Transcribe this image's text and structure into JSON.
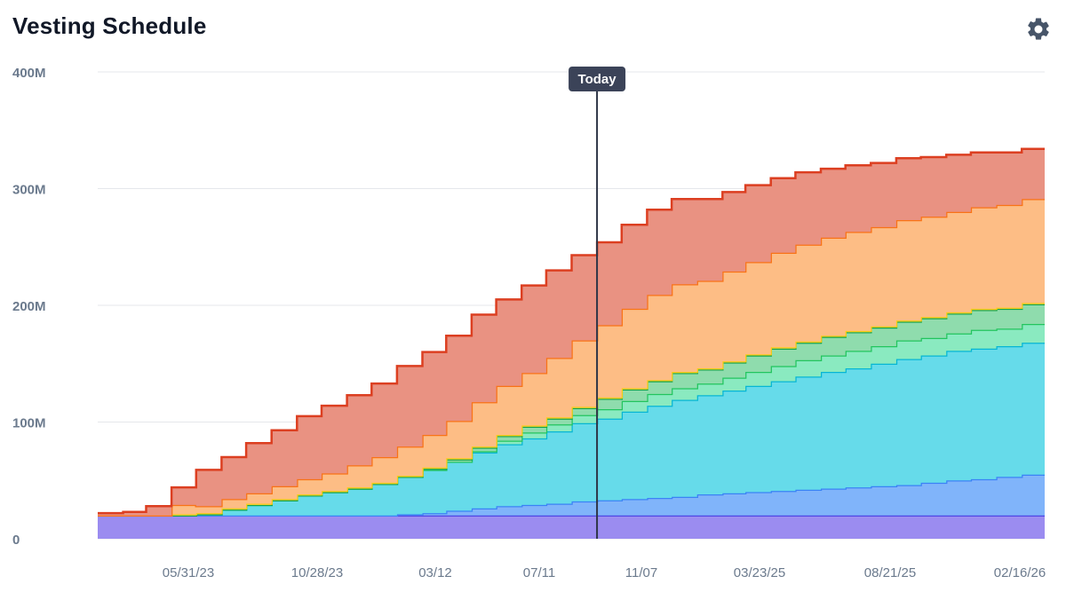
{
  "header": {
    "title": "Vesting Schedule",
    "settings_icon": "gear-icon"
  },
  "chart_data": {
    "type": "area",
    "stacked": true,
    "step": true,
    "title": "Vesting Schedule",
    "y_ticks": [
      "0",
      "100M",
      "200M",
      "300M",
      "400M"
    ],
    "ylim": [
      0,
      400
    ],
    "y_unit": "M",
    "x_tick_labels": [
      "05/31/23",
      "10/28/23",
      "03/12",
      "07/11",
      "11/07",
      "03/23/25",
      "08/21/25",
      "02/16/26"
    ],
    "today_label": "Today",
    "grid": "horizontal",
    "x": [
      "2023-01-01",
      "2023-02-01",
      "2023-03-01",
      "2023-04-01",
      "2023-05-01",
      "2023-06-01",
      "2023-07-01",
      "2023-08-01",
      "2023-09-01",
      "2023-10-01",
      "2023-11-01",
      "2023-12-01",
      "2024-01-01",
      "2024-02-01",
      "2024-03-01",
      "2024-04-01",
      "2024-05-01",
      "2024-06-01",
      "2024-07-01",
      "2024-08-01",
      "2024-09-01",
      "2024-10-01",
      "2024-11-01",
      "2024-12-01",
      "2025-01-01",
      "2025-02-01",
      "2025-03-01",
      "2025-04-01",
      "2025-05-01",
      "2025-06-01",
      "2025-07-01",
      "2025-08-01",
      "2025-09-01",
      "2025-10-01",
      "2025-11-01",
      "2025-12-01",
      "2026-01-01",
      "2026-02-01",
      "2026-03-01"
    ],
    "series": [
      {
        "color": "#9b8cf0",
        "stroke": "#4f46e5",
        "values": [
          20,
          20,
          20,
          20,
          20,
          20,
          20,
          20,
          20,
          20,
          20,
          20,
          20,
          20,
          20,
          20,
          20,
          20,
          20,
          20,
          20,
          20,
          20,
          20,
          20,
          20,
          20,
          20,
          20,
          20,
          20,
          20,
          20,
          20,
          20,
          20,
          20,
          20,
          20
        ]
      },
      {
        "color": "#80b4fa",
        "stroke": "#3b82f6",
        "values": [
          0,
          0,
          0,
          0,
          0,
          0,
          0,
          0,
          0,
          0,
          0,
          0,
          1,
          2,
          4,
          6,
          8,
          9,
          10,
          12,
          13,
          14,
          15,
          16,
          18,
          19,
          20,
          21,
          22,
          23,
          24,
          25,
          26,
          28,
          30,
          31,
          33,
          35,
          38
        ]
      },
      {
        "color": "#66dbea",
        "stroke": "#06b6d4",
        "values": [
          0,
          0,
          0,
          0,
          1,
          5,
          9,
          13,
          17,
          20,
          23,
          27,
          32,
          37,
          42,
          48,
          53,
          57,
          62,
          67,
          70,
          75,
          79,
          83,
          85,
          88,
          91,
          94,
          97,
          100,
          102,
          105,
          108,
          109,
          111,
          112,
          112,
          113,
          117
        ]
      },
      {
        "color": "#8aeac0",
        "stroke": "#22c55e",
        "values": [
          0,
          0,
          0,
          0,
          0,
          0,
          0,
          0,
          0,
          0,
          0,
          0,
          0,
          0,
          0,
          1,
          3,
          5,
          6,
          7,
          8,
          9,
          10,
          10,
          10,
          11,
          12,
          13,
          14,
          14,
          15,
          15,
          16,
          15,
          15,
          16,
          15,
          16,
          17
        ]
      },
      {
        "color": "#8fdcad",
        "stroke": "#16a34a",
        "values": [
          0,
          0,
          0,
          0,
          0,
          0,
          0,
          0,
          0,
          0,
          0,
          0,
          0,
          1,
          2,
          3,
          4,
          5,
          5,
          6,
          9,
          10,
          11,
          13,
          12,
          13,
          14,
          15,
          15,
          16,
          16,
          16,
          16,
          17,
          17,
          17,
          17,
          17,
          18
        ]
      },
      {
        "color": "#fde68a",
        "stroke": "#facc15",
        "values": [
          0,
          0,
          0,
          1,
          1,
          1,
          1,
          1,
          1,
          1,
          1,
          1,
          1,
          1,
          1,
          1,
          1,
          1,
          1,
          1,
          1,
          1,
          1,
          1,
          1,
          1,
          1,
          1,
          1,
          1,
          1,
          1,
          1,
          1,
          1,
          1,
          1,
          1,
          1
        ]
      },
      {
        "color": "#fdbd85",
        "stroke": "#f97316",
        "values": [
          0,
          0,
          0,
          8,
          6,
          8,
          9,
          11,
          13,
          15,
          19,
          22,
          25,
          28,
          32,
          38,
          42,
          45,
          51,
          57,
          62,
          68,
          73,
          75,
          75,
          77,
          79,
          81,
          83,
          84,
          85,
          85,
          86,
          86,
          86,
          87,
          88,
          89,
          90
        ]
      },
      {
        "color": "#e99282",
        "stroke": "#dc3f21",
        "values": [
          2,
          3,
          8,
          15,
          31,
          36,
          43,
          48,
          54,
          58,
          60,
          63,
          69,
          71,
          73,
          75,
          74,
          75,
          75,
          73,
          71,
          72,
          73,
          73,
          70,
          68,
          66,
          64,
          62,
          59,
          57,
          55,
          53,
          51,
          49,
          47,
          45,
          43,
          40
        ]
      }
    ]
  }
}
